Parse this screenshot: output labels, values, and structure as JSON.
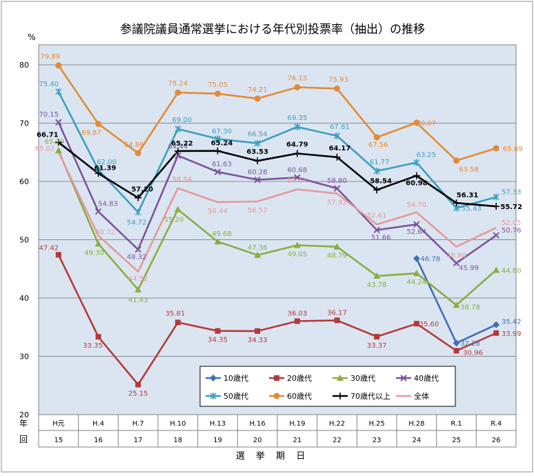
{
  "chart_data": {
    "type": "line",
    "title": "参議院議員通常選挙における年代別投票率（抽出）の推移",
    "ylabel": "%",
    "xlabel": "選 挙 期 日",
    "ylim": [
      20,
      85
    ],
    "yticks": [
      20,
      30,
      40,
      50,
      60,
      70,
      80
    ],
    "grid": true,
    "background": "#dbe5f1",
    "row_labels": [
      "年",
      "回"
    ],
    "categories": [
      "H元",
      "H.4",
      "H.7",
      "H.10",
      "H.13",
      "H.16",
      "H.19",
      "H.22",
      "H.25",
      "H.28",
      "R.1",
      "R.4"
    ],
    "rounds": [
      "15",
      "16",
      "17",
      "18",
      "19",
      "20",
      "21",
      "22",
      "23",
      "24",
      "25",
      "26"
    ],
    "legend_position": "bottom-center",
    "series": [
      {
        "name": "10歳代",
        "color": "#3f6fb5",
        "marker": "diamond",
        "values": [
          null,
          null,
          null,
          null,
          null,
          null,
          null,
          null,
          null,
          46.78,
          32.28,
          35.42
        ],
        "labels": [
          "",
          "",
          "",
          "",
          "",
          "",
          "",
          "",
          "",
          "46.78",
          "32.28",
          "35.42"
        ]
      },
      {
        "name": "20歳代",
        "color": "#b23a3a",
        "marker": "square",
        "values": [
          47.42,
          33.35,
          25.15,
          35.81,
          34.35,
          34.33,
          36.03,
          36.17,
          33.37,
          35.6,
          30.96,
          33.99
        ],
        "labels": [
          "47.42",
          "33.35",
          "25.15",
          "35.81",
          "34.35",
          "34.33",
          "36.03",
          "36.17",
          "33.37",
          "35.60",
          "30.96",
          "33.99"
        ]
      },
      {
        "name": "30歳代",
        "color": "#8aac3f",
        "marker": "triangle",
        "values": [
          65.29,
          49.3,
          41.43,
          55.2,
          49.68,
          47.36,
          49.05,
          48.79,
          43.78,
          44.24,
          38.78,
          44.8
        ],
        "labels": [
          "65.29",
          "49.30",
          "41.43",
          "55.20",
          "49.68",
          "47.36",
          "49.05",
          "48.79",
          "43.78",
          "44.24",
          "38.78",
          "44.80"
        ]
      },
      {
        "name": "40歳代",
        "color": "#7a549a",
        "marker": "x",
        "values": [
          70.15,
          54.83,
          48.32,
          64.44,
          61.63,
          60.28,
          60.68,
          58.8,
          51.66,
          52.64,
          45.99,
          50.76
        ],
        "labels": [
          "70.15",
          "54.83",
          "48.32",
          "64.44",
          "61.63",
          "60.28",
          "60.68",
          "58.80",
          "51.66",
          "52.64",
          "45.99",
          "50.76"
        ]
      },
      {
        "name": "50歳代",
        "color": "#3a9fbd",
        "marker": "asterisk",
        "values": [
          75.4,
          62.0,
          54.72,
          69.0,
          67.3,
          66.54,
          69.35,
          67.81,
          61.77,
          63.25,
          55.43,
          57.33
        ],
        "labels": [
          "75.40",
          "62.00",
          "54.72",
          "69.00",
          "67.30",
          "66.54",
          "69.35",
          "67.81",
          "61.77",
          "63.25",
          "55.43",
          "57.33"
        ]
      },
      {
        "name": "60歳代",
        "color": "#e28a35",
        "marker": "circle",
        "values": [
          79.89,
          69.87,
          64.86,
          75.24,
          75.05,
          74.21,
          76.15,
          75.93,
          67.56,
          70.07,
          63.58,
          65.69
        ],
        "labels": [
          "79.89",
          "69.87",
          "64.86",
          "75.24",
          "75.05",
          "74.21",
          "76.15",
          "75.93",
          "67.56",
          "70.07",
          "63.58",
          "65.69"
        ]
      },
      {
        "name": "70歳代以上",
        "color": "#000000",
        "marker": "plus",
        "values": [
          66.71,
          61.39,
          57.2,
          65.22,
          65.24,
          63.53,
          64.79,
          64.17,
          58.54,
          60.98,
          56.31,
          55.72
        ],
        "labels": [
          "66.71",
          "61.39",
          "57.20",
          "65.22",
          "65.24",
          "63.53",
          "64.79",
          "64.17",
          "58.54",
          "60.98",
          "56.31",
          "55.72"
        ]
      },
      {
        "name": "全体",
        "color": "#e4999a",
        "marker": "none",
        "values": [
          65.02,
          50.72,
          44.52,
          58.84,
          56.44,
          56.57,
          58.64,
          57.92,
          52.61,
          54.7,
          48.8,
          52.05
        ],
        "labels": [
          "65.02",
          "50.72",
          "44.52",
          "58.84",
          "56.44",
          "56.57",
          "58.64",
          "57.92",
          "52.61",
          "54.70",
          "48.80",
          "52.05"
        ]
      }
    ]
  }
}
